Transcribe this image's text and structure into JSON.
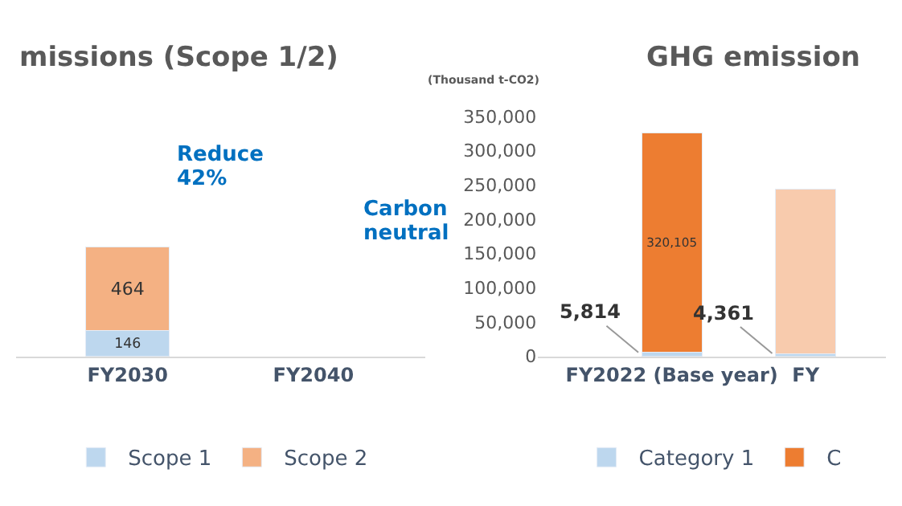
{
  "chart_data": [
    {
      "type": "bar",
      "title": "missions (Scope 1/2)",
      "stacked": true,
      "data_labels": true,
      "legend": "bottom",
      "categories": [
        "FY2030",
        "FY2040"
      ],
      "series": [
        {
          "name": "Scope 1",
          "color": "#bdd7ee",
          "values": [
            146,
            null
          ]
        },
        {
          "name": "Scope 2",
          "color": "#f4b183",
          "values": [
            464,
            null
          ]
        }
      ],
      "annotations": [
        "Reduce",
        "42%",
        "Carbon",
        "neutral"
      ]
    },
    {
      "type": "bar",
      "title": "GHG emission",
      "ylabel": "(Thousand t-CO2)",
      "stacked": true,
      "legend": "bottom",
      "categories": [
        "FY2022 (Base year)",
        "FY"
      ],
      "ylim": [
        0,
        350000
      ],
      "yticks": [
        {
          "value": 0,
          "label": "0"
        },
        {
          "value": 50000,
          "label": "50,000"
        },
        {
          "value": 100000,
          "label": "100,000"
        },
        {
          "value": 150000,
          "label": "150,000"
        },
        {
          "value": 200000,
          "label": "200,000"
        },
        {
          "value": 250000,
          "label": "250,000"
        },
        {
          "value": 300000,
          "label": "300,000"
        },
        {
          "value": 350000,
          "label": "350,000"
        }
      ],
      "series": [
        {
          "name": "Category 1",
          "color": "#bdd7ee",
          "values": [
            5814,
            4361
          ],
          "value_labels": [
            "5,814",
            "4,361"
          ]
        },
        {
          "name": "C",
          "colors": [
            "#ed7d31",
            "#f8cbad"
          ],
          "values": [
            320105,
            240000
          ],
          "value_labels": [
            "320,105",
            null
          ]
        }
      ]
    }
  ]
}
